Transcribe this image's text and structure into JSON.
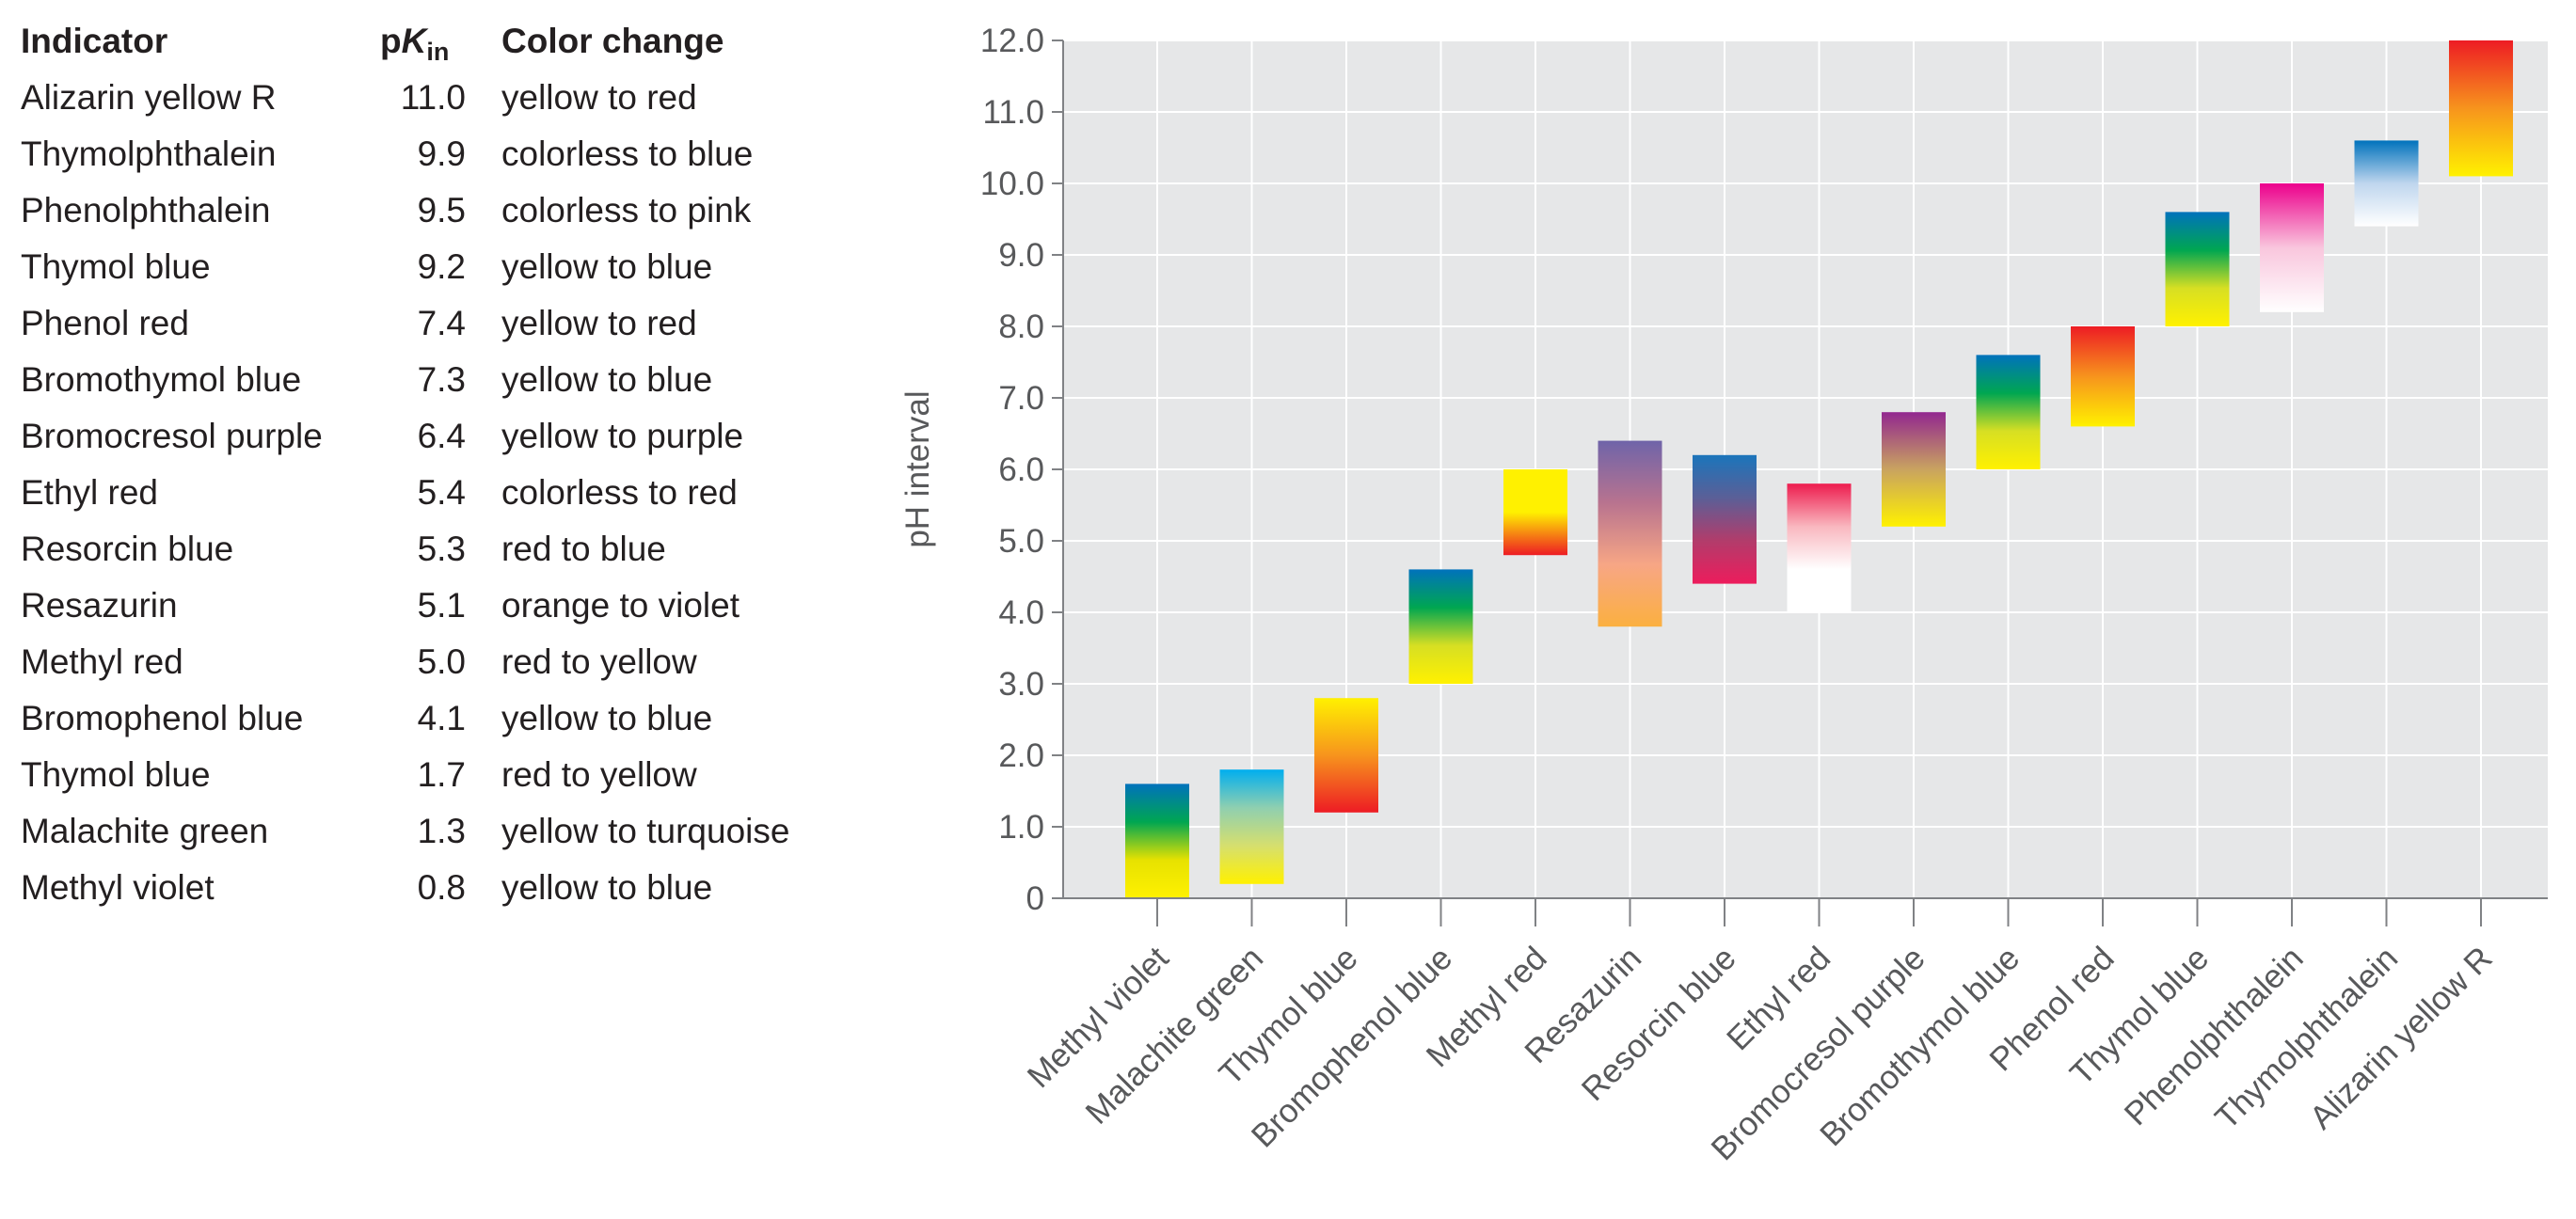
{
  "table": {
    "header": {
      "indicator": "Indicator",
      "pk_main": "p",
      "pk_italic": "K",
      "pk_sub": "in",
      "color_change": "Color change"
    },
    "rows": [
      {
        "name": "Alizarin yellow R",
        "pk": "11.0",
        "change": "yellow to red"
      },
      {
        "name": "Thymolphthalein",
        "pk": "9.9",
        "change": "colorless to blue"
      },
      {
        "name": "Phenolphthalein",
        "pk": "9.5",
        "change": "colorless to pink"
      },
      {
        "name": "Thymol blue",
        "pk": "9.2",
        "change": "yellow to blue"
      },
      {
        "name": "Phenol red",
        "pk": "7.4",
        "change": "yellow to red"
      },
      {
        "name": "Bromothymol blue",
        "pk": "7.3",
        "change": "yellow to blue"
      },
      {
        "name": "Bromocresol purple",
        "pk": "6.4",
        "change": "yellow to purple"
      },
      {
        "name": "Ethyl red",
        "pk": "5.4",
        "change": "colorless to red"
      },
      {
        "name": "Resorcin blue",
        "pk": "5.3",
        "change": "red to blue"
      },
      {
        "name": "Resazurin",
        "pk": "5.1",
        "change": "orange to violet"
      },
      {
        "name": "Methyl red",
        "pk": "5.0",
        "change": "red to yellow"
      },
      {
        "name": "Bromophenol blue",
        "pk": "4.1",
        "change": "yellow to blue"
      },
      {
        "name": "Thymol blue",
        "pk": "1.7",
        "change": "red to yellow"
      },
      {
        "name": "Malachite green",
        "pk": "1.3",
        "change": "yellow to turquoise"
      },
      {
        "name": "Methyl violet",
        "pk": "0.8",
        "change": "yellow to blue"
      }
    ]
  },
  "chart_data": {
    "type": "bar",
    "ylabel": "pH interval",
    "ylim": [
      0,
      12
    ],
    "yticks": [
      "0",
      "1.0",
      "2.0",
      "3.0",
      "4.0",
      "5.0",
      "6.0",
      "7.0",
      "8.0",
      "9.0",
      "10.0",
      "11.0",
      "12.0"
    ],
    "grid": true,
    "colors": {
      "plot_bg": "#e6e7e8",
      "grid": "#ffffff",
      "axis": "#808285",
      "text": "#58595b"
    },
    "categories": [
      "Methyl violet",
      "Malachite green",
      "Thymol blue",
      "Bromophenol blue",
      "Methyl red",
      "Resazurin",
      "Resorcin blue",
      "Ethyl red",
      "Bromocresol purple",
      "Bromothymol blue",
      "Phenol red",
      "Thymol blue",
      "Phenolphthalein",
      "Thymolphthalein",
      "Alizarin yellow R"
    ],
    "ranges": [
      {
        "low": 0.0,
        "high": 1.6,
        "colors": [
          "#fff100",
          "#e7e200",
          "#00a651",
          "#0072bc"
        ]
      },
      {
        "low": 0.2,
        "high": 1.8,
        "colors": [
          "#fff100",
          "#d6df6e",
          "#8fcfb0",
          "#00aeef"
        ]
      },
      {
        "low": 1.2,
        "high": 2.8,
        "colors": [
          "#ed1c24",
          "#f7941d",
          "#fff100"
        ]
      },
      {
        "low": 3.0,
        "high": 4.6,
        "colors": [
          "#fff100",
          "#d7df23",
          "#00a651",
          "#0072bc"
        ]
      },
      {
        "low": 4.8,
        "high": 6.0,
        "colors": [
          "#ed1c24",
          "#fff100",
          "#fff100"
        ]
      },
      {
        "low": 3.8,
        "high": 6.4,
        "colors": [
          "#fbb040",
          "#f7a685",
          "#b8738f",
          "#6f64a9"
        ]
      },
      {
        "low": 4.4,
        "high": 6.2,
        "colors": [
          "#ed1c5c",
          "#b23c6b",
          "#5b5f97",
          "#1b75bb"
        ]
      },
      {
        "low": 4.0,
        "high": 5.8,
        "colors": [
          "#ffffff",
          "#ffffff",
          "#f9b7bf",
          "#ed1c4e"
        ]
      },
      {
        "low": 5.2,
        "high": 6.8,
        "colors": [
          "#fff100",
          "#c9a360",
          "#92278f"
        ]
      },
      {
        "low": 6.0,
        "high": 7.6,
        "colors": [
          "#fff100",
          "#d7df23",
          "#00a651",
          "#0072bc"
        ]
      },
      {
        "low": 6.6,
        "high": 8.0,
        "colors": [
          "#fff100",
          "#f7941d",
          "#ed1c24"
        ]
      },
      {
        "low": 8.0,
        "high": 9.6,
        "colors": [
          "#fff100",
          "#d7df23",
          "#00a651",
          "#0072bc"
        ]
      },
      {
        "low": 8.2,
        "high": 10.0,
        "colors": [
          "#ffffff",
          "#f9c6dd",
          "#ec008c"
        ]
      },
      {
        "low": 9.4,
        "high": 10.6,
        "colors": [
          "#ffffff",
          "#bfd6ee",
          "#0072bc"
        ]
      },
      {
        "low": 10.1,
        "high": 12.0,
        "colors": [
          "#fff100",
          "#f7941d",
          "#ed1c24"
        ]
      }
    ]
  }
}
